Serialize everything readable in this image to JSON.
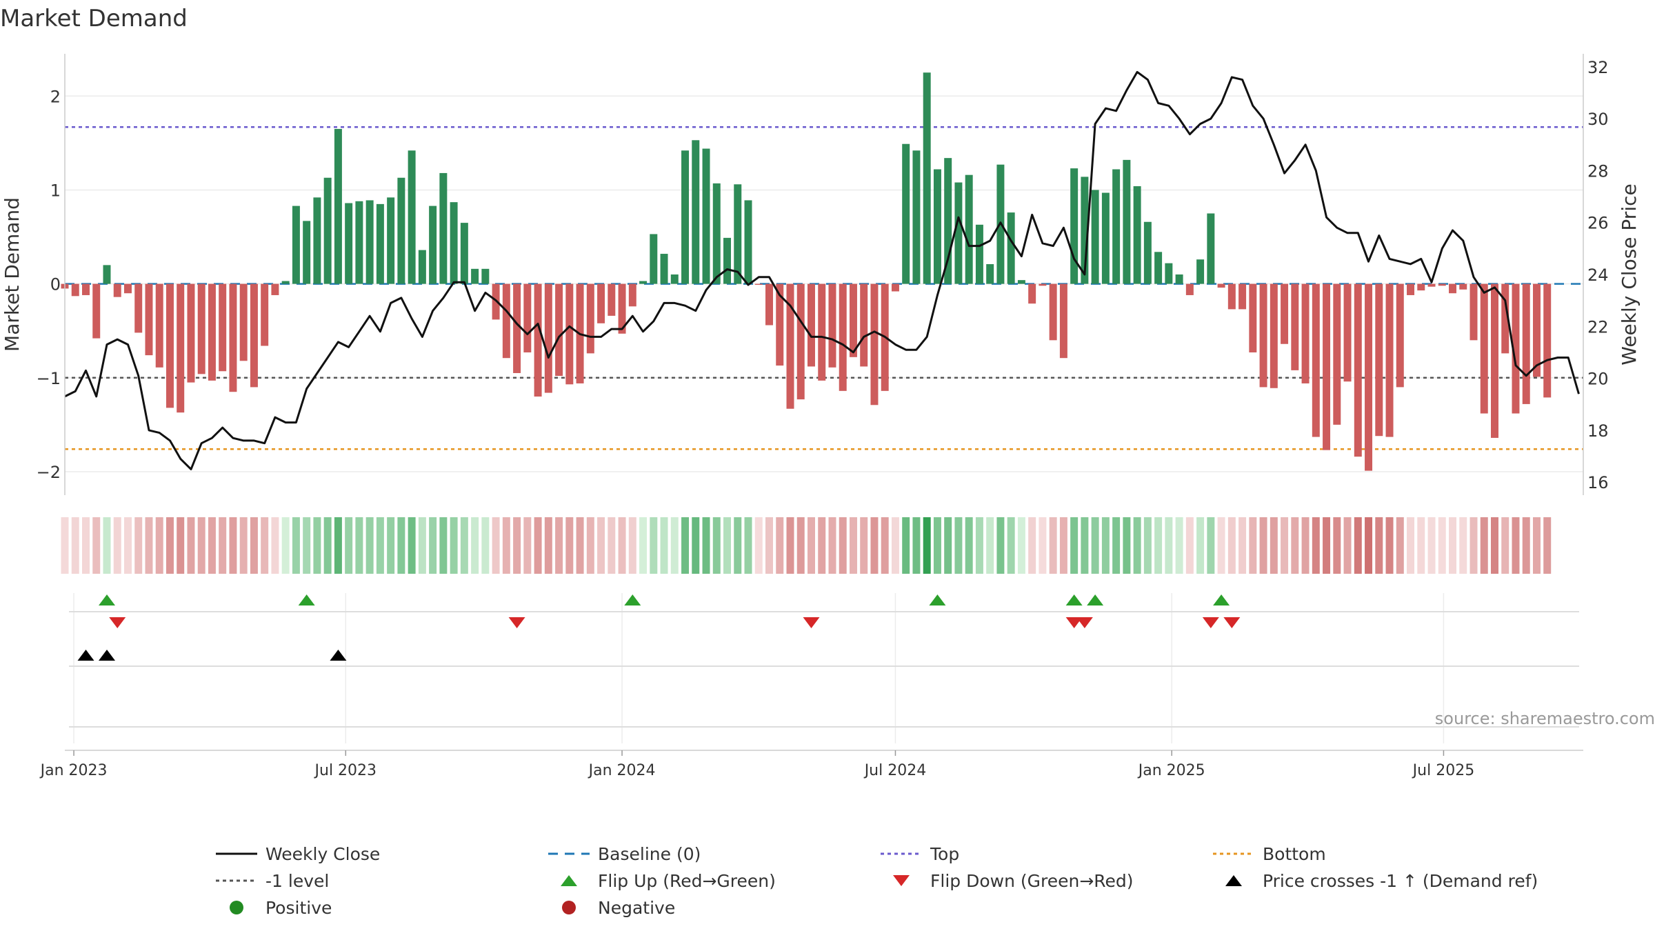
{
  "chart_data": {
    "type": "bar",
    "title": "Market Demand",
    "ylabel": "Market Demand",
    "y2label": "Weekly Close Price",
    "source": "source: sharemaestro.com",
    "ylim": [
      -2.25,
      2.45
    ],
    "y2lim": [
      15.5,
      32.5
    ],
    "yticks": [
      -2,
      -1,
      0,
      1,
      2
    ],
    "y2ticks": [
      16,
      18,
      20,
      22,
      24,
      26,
      28,
      30,
      32
    ],
    "top_level": 1.67,
    "bottom_level": -1.76,
    "minus_one_level": -1,
    "x_start": "2022-12-26",
    "x_end": "2025-10-02",
    "x_ticks": [
      {
        "date": "2023-01-01",
        "label": "Jan 2023"
      },
      {
        "date": "2023-07-01",
        "label": "Jul 2023"
      },
      {
        "date": "2024-01-01",
        "label": "Jan 2024"
      },
      {
        "date": "2024-07-01",
        "label": "Jul 2024"
      },
      {
        "date": "2025-01-01",
        "label": "Jan 2025"
      },
      {
        "date": "2025-07-01",
        "label": "Jul 2025"
      }
    ],
    "first_week": "2022-12-26",
    "demand": [
      -0.05,
      -0.13,
      -0.12,
      -0.58,
      0.2,
      -0.14,
      -0.1,
      -0.52,
      -0.76,
      -0.89,
      -1.32,
      -1.37,
      -1.05,
      -0.96,
      -1.03,
      -0.93,
      -1.15,
      -0.82,
      -1.1,
      -0.66,
      -0.12,
      0.03,
      0.83,
      0.67,
      0.92,
      1.13,
      1.65,
      0.86,
      0.88,
      0.89,
      0.85,
      0.92,
      1.13,
      1.42,
      0.36,
      0.83,
      1.18,
      0.87,
      0.65,
      0.16,
      0.16,
      -0.38,
      -0.79,
      -0.95,
      -0.73,
      -1.2,
      -1.16,
      -0.98,
      -1.07,
      -1.06,
      -0.74,
      -0.42,
      -0.34,
      -0.53,
      -0.24,
      0.03,
      0.53,
      0.32,
      0.1,
      1.42,
      1.53,
      1.44,
      1.07,
      0.49,
      1.06,
      0.89,
      -0.01,
      -0.44,
      -0.87,
      -1.33,
      -1.23,
      -0.88,
      -1.03,
      -0.89,
      -1.14,
      -0.78,
      -0.88,
      -1.29,
      -1.14,
      -0.08,
      1.49,
      1.42,
      2.25,
      1.22,
      1.34,
      1.08,
      1.16,
      0.63,
      0.21,
      1.27,
      0.76,
      0.04,
      -0.21,
      -0.02,
      -0.6,
      -0.79,
      1.23,
      1.14,
      1.0,
      0.97,
      1.22,
      1.32,
      1.04,
      0.66,
      0.34,
      0.22,
      0.1,
      -0.12,
      0.26,
      0.75,
      -0.04,
      -0.27,
      -0.27,
      -0.73,
      -1.1,
      -1.11,
      -0.64,
      -0.92,
      -1.06,
      -1.63,
      -1.77,
      -1.5,
      -1.04,
      -1.84,
      -1.99,
      -1.62,
      -1.63,
      -1.1,
      -0.12,
      -0.07,
      -0.03,
      -0.02,
      -0.1,
      -0.06,
      -0.6,
      -1.38,
      -1.64,
      -0.74,
      -1.38,
      -1.28,
      -0.99,
      -1.21
    ],
    "series": [
      {
        "name": "Weekly Close",
        "type": "line",
        "axis": "right",
        "color": "#111111",
        "points": [
          [
            "2022-12-26",
            19.3
          ],
          [
            "2023-01-02",
            19.5
          ],
          [
            "2023-01-09",
            20.3
          ],
          [
            "2023-01-16",
            19.3
          ],
          [
            "2023-01-23",
            21.3
          ],
          [
            "2023-01-30",
            21.5
          ],
          [
            "2023-02-06",
            21.3
          ],
          [
            "2023-02-13",
            20.1
          ],
          [
            "2023-02-20",
            18.0
          ],
          [
            "2023-02-27",
            17.9
          ],
          [
            "2023-03-06",
            17.6
          ],
          [
            "2023-03-13",
            16.9
          ],
          [
            "2023-03-20",
            16.5
          ],
          [
            "2023-03-27",
            17.5
          ],
          [
            "2023-04-03",
            17.7
          ],
          [
            "2023-04-10",
            18.1
          ],
          [
            "2023-04-17",
            17.7
          ],
          [
            "2023-04-24",
            17.6
          ],
          [
            "2023-05-01",
            17.6
          ],
          [
            "2023-05-08",
            17.5
          ],
          [
            "2023-05-15",
            18.5
          ],
          [
            "2023-05-22",
            18.3
          ],
          [
            "2023-05-29",
            18.3
          ],
          [
            "2023-06-05",
            19.6
          ],
          [
            "2023-06-12",
            20.2
          ],
          [
            "2023-06-19",
            20.8
          ],
          [
            "2023-06-26",
            21.4
          ],
          [
            "2023-07-03",
            21.2
          ],
          [
            "2023-07-10",
            21.8
          ],
          [
            "2023-07-17",
            22.4
          ],
          [
            "2023-07-24",
            21.8
          ],
          [
            "2023-07-31",
            22.9
          ],
          [
            "2023-08-07",
            23.1
          ],
          [
            "2023-08-14",
            22.3
          ],
          [
            "2023-08-21",
            21.6
          ],
          [
            "2023-08-28",
            22.6
          ],
          [
            "2023-09-04",
            23.1
          ],
          [
            "2023-09-11",
            23.7
          ],
          [
            "2023-09-18",
            23.7
          ],
          [
            "2023-09-25",
            22.6
          ],
          [
            "2023-10-02",
            23.3
          ],
          [
            "2023-10-09",
            23.0
          ],
          [
            "2023-10-16",
            22.6
          ],
          [
            "2023-10-23",
            22.1
          ],
          [
            "2023-10-30",
            21.7
          ],
          [
            "2023-11-06",
            22.1
          ],
          [
            "2023-11-13",
            20.8
          ],
          [
            "2023-11-20",
            21.6
          ],
          [
            "2023-11-27",
            22.0
          ],
          [
            "2023-12-04",
            21.7
          ],
          [
            "2023-12-11",
            21.6
          ],
          [
            "2023-12-18",
            21.6
          ],
          [
            "2023-12-25",
            21.9
          ],
          [
            "2024-01-01",
            21.9
          ],
          [
            "2024-01-08",
            22.4
          ],
          [
            "2024-01-15",
            21.8
          ],
          [
            "2024-01-22",
            22.2
          ],
          [
            "2024-01-29",
            22.9
          ],
          [
            "2024-02-05",
            22.9
          ],
          [
            "2024-02-12",
            22.8
          ],
          [
            "2024-02-19",
            22.6
          ],
          [
            "2024-02-26",
            23.4
          ],
          [
            "2024-03-04",
            23.9
          ],
          [
            "2024-03-11",
            24.2
          ],
          [
            "2024-03-18",
            24.1
          ],
          [
            "2024-03-25",
            23.6
          ],
          [
            "2024-04-01",
            23.9
          ],
          [
            "2024-04-08",
            23.9
          ],
          [
            "2024-04-15",
            23.2
          ],
          [
            "2024-04-22",
            22.8
          ],
          [
            "2024-04-29",
            22.2
          ],
          [
            "2024-05-06",
            21.6
          ],
          [
            "2024-05-13",
            21.6
          ],
          [
            "2024-05-20",
            21.5
          ],
          [
            "2024-05-27",
            21.3
          ],
          [
            "2024-06-03",
            21.0
          ],
          [
            "2024-06-10",
            21.6
          ],
          [
            "2024-06-17",
            21.8
          ],
          [
            "2024-06-24",
            21.6
          ],
          [
            "2024-07-01",
            21.3
          ],
          [
            "2024-07-08",
            21.1
          ],
          [
            "2024-07-15",
            21.1
          ],
          [
            "2024-07-22",
            21.6
          ],
          [
            "2024-07-29",
            23.2
          ],
          [
            "2024-08-05",
            24.6
          ],
          [
            "2024-08-12",
            26.2
          ],
          [
            "2024-08-19",
            25.1
          ],
          [
            "2024-08-26",
            25.1
          ],
          [
            "2024-09-02",
            25.3
          ],
          [
            "2024-09-09",
            26.0
          ],
          [
            "2024-09-16",
            25.3
          ],
          [
            "2024-09-23",
            24.7
          ],
          [
            "2024-09-30",
            26.3
          ],
          [
            "2024-10-07",
            25.2
          ],
          [
            "2024-10-14",
            25.1
          ],
          [
            "2024-10-21",
            25.8
          ],
          [
            "2024-10-28",
            24.6
          ],
          [
            "2024-11-04",
            24.0
          ],
          [
            "2024-11-11",
            29.8
          ],
          [
            "2024-11-18",
            30.4
          ],
          [
            "2024-11-25",
            30.3
          ],
          [
            "2024-12-02",
            31.1
          ],
          [
            "2024-12-09",
            31.8
          ],
          [
            "2024-12-16",
            31.5
          ],
          [
            "2024-12-23",
            30.6
          ],
          [
            "2024-12-30",
            30.5
          ],
          [
            "2025-01-06",
            30.0
          ],
          [
            "2025-01-13",
            29.4
          ],
          [
            "2025-01-20",
            29.8
          ],
          [
            "2025-01-27",
            30.0
          ],
          [
            "2025-02-03",
            30.6
          ],
          [
            "2025-02-10",
            31.6
          ],
          [
            "2025-02-17",
            31.5
          ],
          [
            "2025-02-24",
            30.5
          ],
          [
            "2025-03-03",
            30.0
          ],
          [
            "2025-03-10",
            29.0
          ],
          [
            "2025-03-17",
            27.9
          ],
          [
            "2025-03-24",
            28.4
          ],
          [
            "2025-03-31",
            29.0
          ],
          [
            "2025-04-07",
            28.0
          ],
          [
            "2025-04-14",
            26.2
          ],
          [
            "2025-04-21",
            25.8
          ],
          [
            "2025-04-28",
            25.6
          ],
          [
            "2025-05-05",
            25.6
          ],
          [
            "2025-05-12",
            24.5
          ],
          [
            "2025-05-19",
            25.5
          ],
          [
            "2025-05-26",
            24.6
          ],
          [
            "2025-06-02",
            24.5
          ],
          [
            "2025-06-09",
            24.4
          ],
          [
            "2025-06-16",
            24.6
          ],
          [
            "2025-06-23",
            23.7
          ],
          [
            "2025-06-30",
            25.0
          ],
          [
            "2025-07-07",
            25.7
          ],
          [
            "2025-07-14",
            25.3
          ],
          [
            "2025-07-21",
            23.9
          ],
          [
            "2025-07-28",
            23.3
          ],
          [
            "2025-08-04",
            23.5
          ],
          [
            "2025-08-11",
            23.0
          ],
          [
            "2025-08-18",
            20.5
          ],
          [
            "2025-08-25",
            20.1
          ],
          [
            "2025-09-01",
            20.5
          ],
          [
            "2025-09-08",
            20.7
          ],
          [
            "2025-09-15",
            20.8
          ],
          [
            "2025-09-22",
            20.8
          ],
          [
            "2025-09-29",
            19.4
          ]
        ]
      },
      {
        "name": "Market Demand",
        "type": "bar",
        "axis": "left",
        "positive_color": "#2e8b57",
        "negative_color": "#cd5c5c"
      }
    ],
    "flip_up_dates": [
      "2023-01-23",
      "2023-06-05",
      "2024-01-08",
      "2024-07-29",
      "2024-10-28",
      "2024-11-11",
      "2025-02-03"
    ],
    "flip_down_dates": [
      "2023-01-30",
      "2023-10-23",
      "2024-05-06",
      "2024-10-28",
      "2024-11-04",
      "2025-01-27",
      "2025-02-10"
    ],
    "price_cross_dates": [
      "2023-01-09",
      "2023-01-23",
      "2023-06-26"
    ],
    "legend": {
      "position": "bottom",
      "entries": [
        {
          "label": "Weekly Close",
          "symbol": "line-solid",
          "color": "#111111"
        },
        {
          "label": "Baseline (0)",
          "symbol": "line-dashed",
          "color": "#1f77b4"
        },
        {
          "label": "Top",
          "symbol": "line-dotted",
          "color": "#6a5acd"
        },
        {
          "label": "Bottom",
          "symbol": "line-dotted",
          "color": "#e69520"
        },
        {
          "label": "-1 level",
          "symbol": "line-dotted",
          "color": "#555555"
        },
        {
          "label": "Flip Up (Red→Green)",
          "symbol": "triangle-up",
          "color": "#2ca02c"
        },
        {
          "label": "Flip Down (Green→Red)",
          "symbol": "triangle-down",
          "color": "#d62728"
        },
        {
          "label": "Price crosses -1 ↑ (Demand ref)",
          "symbol": "triangle-up",
          "color": "#000000"
        },
        {
          "label": "Positive",
          "symbol": "circle",
          "color": "#228b22"
        },
        {
          "label": "Negative",
          "symbol": "circle",
          "color": "#b22222"
        }
      ]
    }
  }
}
